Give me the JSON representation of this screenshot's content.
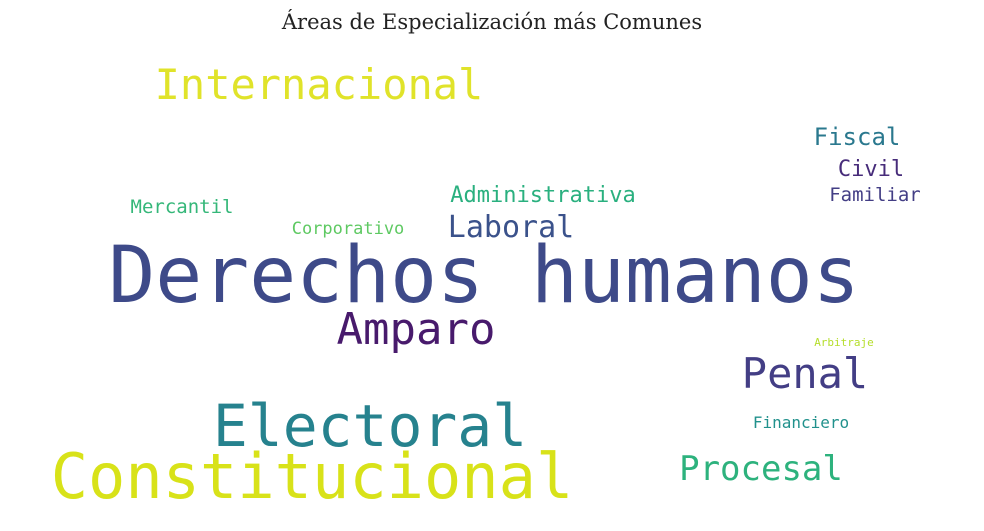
{
  "chart_data": {
    "type": "wordcloud",
    "title": "Áreas de Especialización más Comunes",
    "words": [
      {
        "text": "Derechos humanos",
        "color": "#3e4a89"
      },
      {
        "text": "Constitucional",
        "color": "#d8e219"
      },
      {
        "text": "Electoral",
        "color": "#26828e"
      },
      {
        "text": "Internacional",
        "color": "#e0e32a"
      },
      {
        "text": "Amparo",
        "color": "#481a6c"
      },
      {
        "text": "Penal",
        "color": "#433e85"
      },
      {
        "text": "Procesal",
        "color": "#2db27d"
      },
      {
        "text": "Laboral",
        "color": "#3b528b"
      },
      {
        "text": "Administrativa",
        "color": "#2ab07f"
      },
      {
        "text": "Fiscal",
        "color": "#2a788e"
      },
      {
        "text": "Civil",
        "color": "#472c7a"
      },
      {
        "text": "Familiar",
        "color": "#433e85"
      },
      {
        "text": "Mercantil",
        "color": "#35b779"
      },
      {
        "text": "Corporativo",
        "color": "#5ec962"
      },
      {
        "text": "Financiero",
        "color": "#21918c"
      },
      {
        "text": "Arbitraje",
        "color": "#b5de2b"
      }
    ]
  }
}
